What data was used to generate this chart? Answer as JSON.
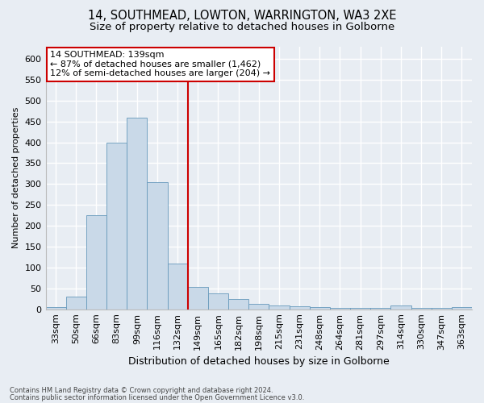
{
  "title1": "14, SOUTHMEAD, LOWTON, WARRINGTON, WA3 2XE",
  "title2": "Size of property relative to detached houses in Golborne",
  "xlabel": "Distribution of detached houses by size in Golborne",
  "ylabel": "Number of detached properties",
  "categories": [
    "33sqm",
    "50sqm",
    "66sqm",
    "83sqm",
    "99sqm",
    "116sqm",
    "132sqm",
    "149sqm",
    "165sqm",
    "182sqm",
    "198sqm",
    "215sqm",
    "231sqm",
    "248sqm",
    "264sqm",
    "281sqm",
    "297sqm",
    "314sqm",
    "330sqm",
    "347sqm",
    "363sqm"
  ],
  "values": [
    5,
    30,
    225,
    400,
    460,
    305,
    110,
    53,
    38,
    25,
    13,
    10,
    8,
    5,
    3,
    3,
    3,
    10,
    3,
    3,
    5
  ],
  "bar_color": "#c9d9e8",
  "bar_edge_color": "#6699bb",
  "vline_x_index": 7,
  "vline_color": "#cc0000",
  "annotation_text": "14 SOUTHMEAD: 139sqm\n← 87% of detached houses are smaller (1,462)\n12% of semi-detached houses are larger (204) →",
  "annotation_box_color": "#ffffff",
  "annotation_box_edge": "#cc0000",
  "footer1": "Contains HM Land Registry data © Crown copyright and database right 2024.",
  "footer2": "Contains public sector information licensed under the Open Government Licence v3.0.",
  "ylim": [
    0,
    630
  ],
  "yticks": [
    0,
    50,
    100,
    150,
    200,
    250,
    300,
    350,
    400,
    450,
    500,
    550,
    600
  ],
  "background_color": "#e8edf3",
  "plot_bg_color": "#e8edf3",
  "title1_fontsize": 10.5,
  "title2_fontsize": 9.5,
  "xlabel_fontsize": 9,
  "ylabel_fontsize": 8,
  "tick_fontsize": 8,
  "annotation_fontsize": 8,
  "footer_fontsize": 6,
  "grid_color": "#ffffff",
  "grid_linewidth": 1.0
}
